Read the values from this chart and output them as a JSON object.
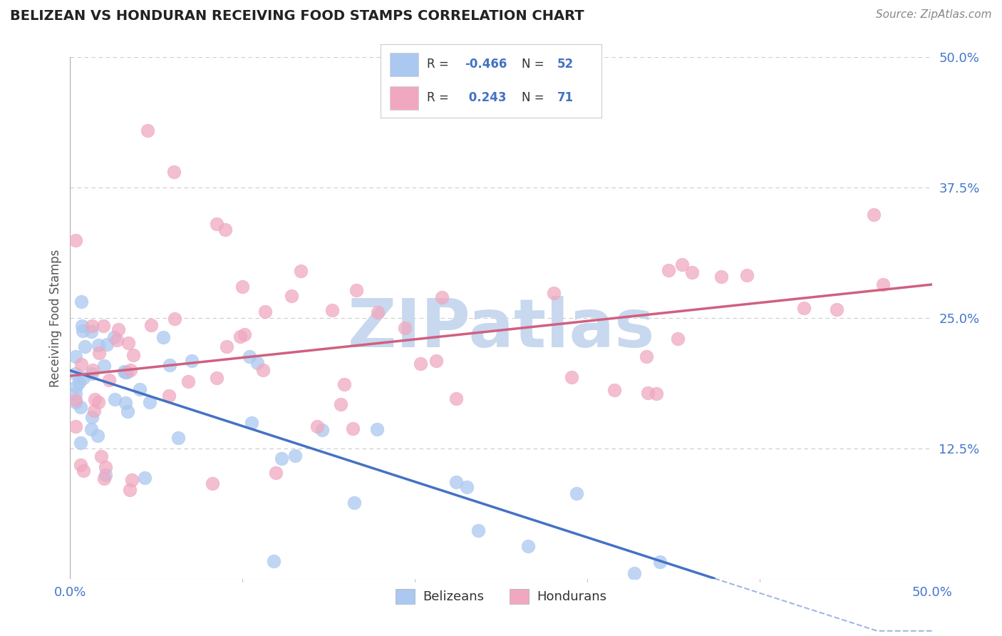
{
  "title": "BELIZEAN VS HONDURAN RECEIVING FOOD STAMPS CORRELATION CHART",
  "source": "Source: ZipAtlas.com",
  "ylabel": "Receiving Food Stamps",
  "x_min": 0.0,
  "x_max": 50.0,
  "y_min": 0.0,
  "y_max": 50.0,
  "belizean_color": "#aac8f0",
  "honduran_color": "#f0a8c0",
  "belizean_line_color": "#4472c4",
  "honduran_line_color": "#d06080",
  "legend_R_belizean": "-0.466",
  "legend_N_belizean": "52",
  "legend_R_honduran": "0.243",
  "legend_N_honduran": "71",
  "legend_text_color": "#4472c4",
  "watermark": "ZIPatlas",
  "watermark_color": "#c8d8ee",
  "grid_color": "#cccccc",
  "background_color": "#ffffff",
  "title_color": "#222222",
  "source_color": "#888888",
  "tick_color": "#4477cc",
  "ylabel_color": "#555555"
}
